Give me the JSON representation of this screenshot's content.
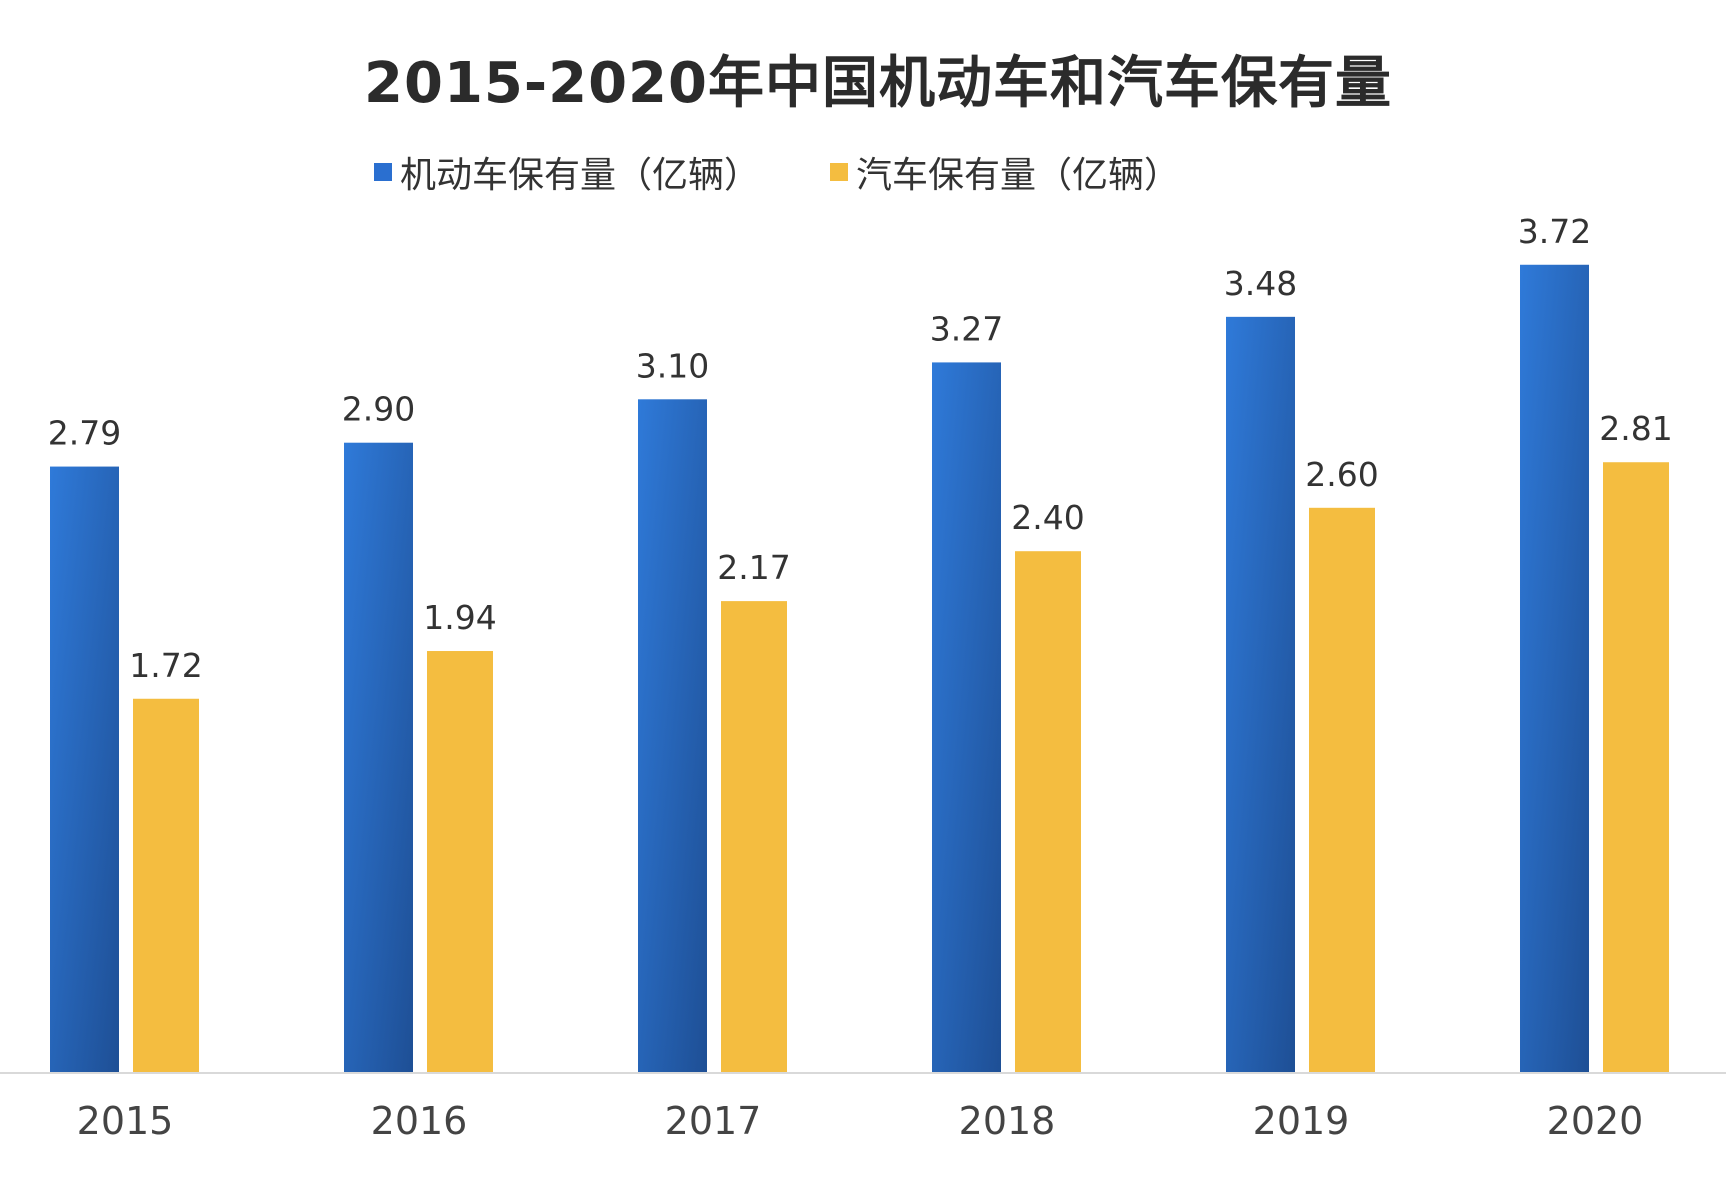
{
  "chart_data": {
    "type": "bar",
    "title": "2015-2020年中国机动车和汽车保有量",
    "categories": [
      "2015",
      "2016",
      "2017",
      "2018",
      "2019",
      "2020"
    ],
    "series": [
      {
        "name": "机动车保有量（亿辆）",
        "color": "#2a6fd0",
        "values": [
          2.79,
          2.9,
          3.1,
          3.27,
          3.48,
          3.72
        ]
      },
      {
        "name": "汽车保有量（亿辆）",
        "color": "#f4bd40",
        "values": [
          1.72,
          1.94,
          2.17,
          2.4,
          2.6,
          2.81
        ]
      }
    ],
    "ylim": [
      0,
      3.72
    ],
    "grid": false,
    "legend": "top",
    "data_labels": true
  }
}
